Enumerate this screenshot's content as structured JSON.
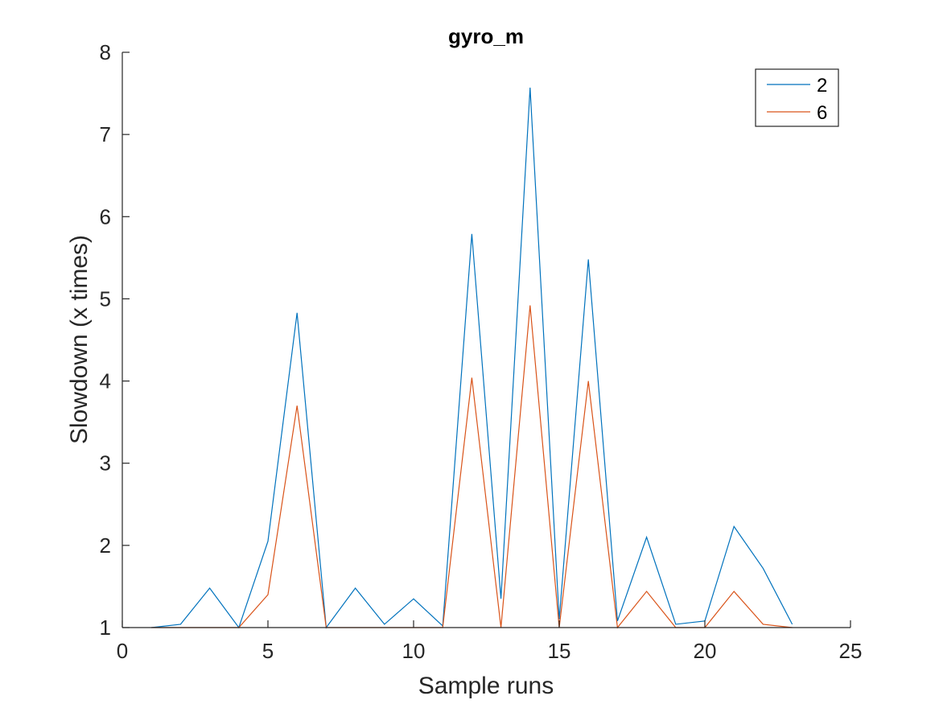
{
  "chart_data": {
    "type": "line",
    "title": "gyro_m",
    "xlabel": "Sample runs",
    "ylabel": "Slowdown (x times)",
    "xlim": [
      0,
      25
    ],
    "ylim": [
      1,
      8
    ],
    "xticks": [
      "0",
      "5",
      "10",
      "15",
      "20",
      "25"
    ],
    "yticks": [
      "1",
      "2",
      "3",
      "4",
      "5",
      "6",
      "7",
      "8"
    ],
    "grid": false,
    "legend_position": "top-right",
    "x": [
      1,
      2,
      3,
      4,
      5,
      6,
      7,
      8,
      9,
      10,
      11,
      12,
      13,
      14,
      15,
      16,
      17,
      18,
      19,
      20,
      21,
      22,
      23
    ],
    "series": [
      {
        "name": "2",
        "color": "#0072BD",
        "values": [
          1.0,
          1.04,
          1.48,
          1.0,
          2.05,
          4.83,
          1.0,
          1.48,
          1.04,
          1.35,
          1.02,
          5.79,
          1.35,
          7.57,
          1.1,
          5.48,
          1.08,
          2.1,
          1.04,
          1.08,
          2.23,
          1.72,
          1.04
        ]
      },
      {
        "name": "6",
        "color": "#D95319",
        "values": [
          1.0,
          1.0,
          1.0,
          1.0,
          1.4,
          3.7,
          1.0,
          1.0,
          1.0,
          1.0,
          1.0,
          4.04,
          1.0,
          4.92,
          1.0,
          4.0,
          1.0,
          1.44,
          1.0,
          1.0,
          1.44,
          1.04,
          1.0
        ]
      }
    ]
  }
}
